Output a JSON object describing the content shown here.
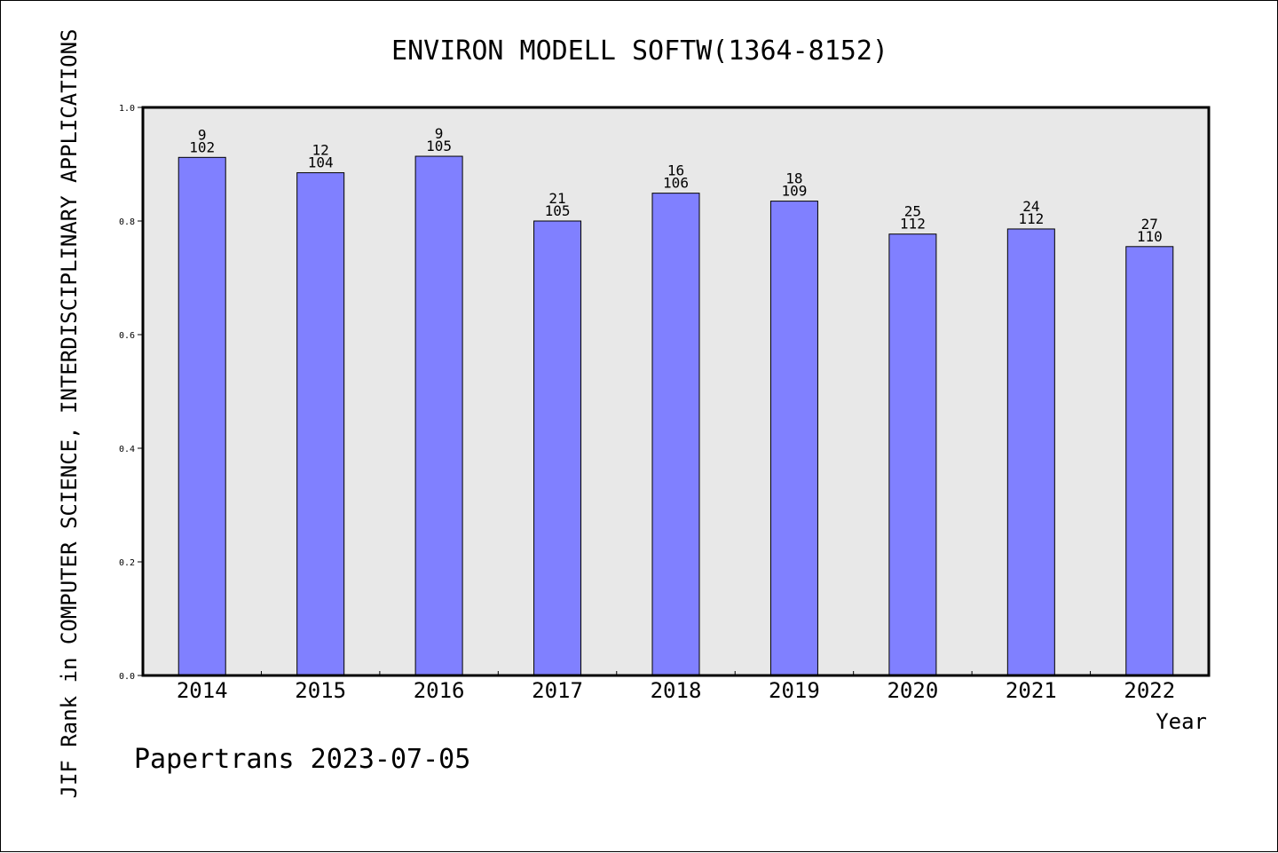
{
  "chart_data": {
    "type": "bar",
    "title": "ENVIRON MODELL SOFTW(1364-8152)",
    "xlabel": "Year",
    "ylabel": "JIF Rank in COMPUTER SCIENCE, INTERDISCIPLINARY APPLICATIONS",
    "categories": [
      "2014",
      "2015",
      "2016",
      "2017",
      "2018",
      "2019",
      "2020",
      "2021",
      "2022"
    ],
    "values": [
      0.912,
      0.885,
      0.914,
      0.8,
      0.849,
      0.835,
      0.777,
      0.786,
      0.755
    ],
    "rank": [
      "9",
      "12",
      "9",
      "21",
      "16",
      "18",
      "25",
      "24",
      "27"
    ],
    "total": [
      "102",
      "104",
      "105",
      "105",
      "106",
      "109",
      "112",
      "112",
      "110"
    ],
    "ylim": [
      0,
      1.0
    ],
    "yticks": [
      "0.0",
      "0.2",
      "0.4",
      "0.6",
      "0.8",
      "1.0"
    ],
    "grid": false,
    "bar_color": "#8080ff",
    "plot_background": "#e8e8e8"
  },
  "watermark": "Papertrans 2023-07-05"
}
